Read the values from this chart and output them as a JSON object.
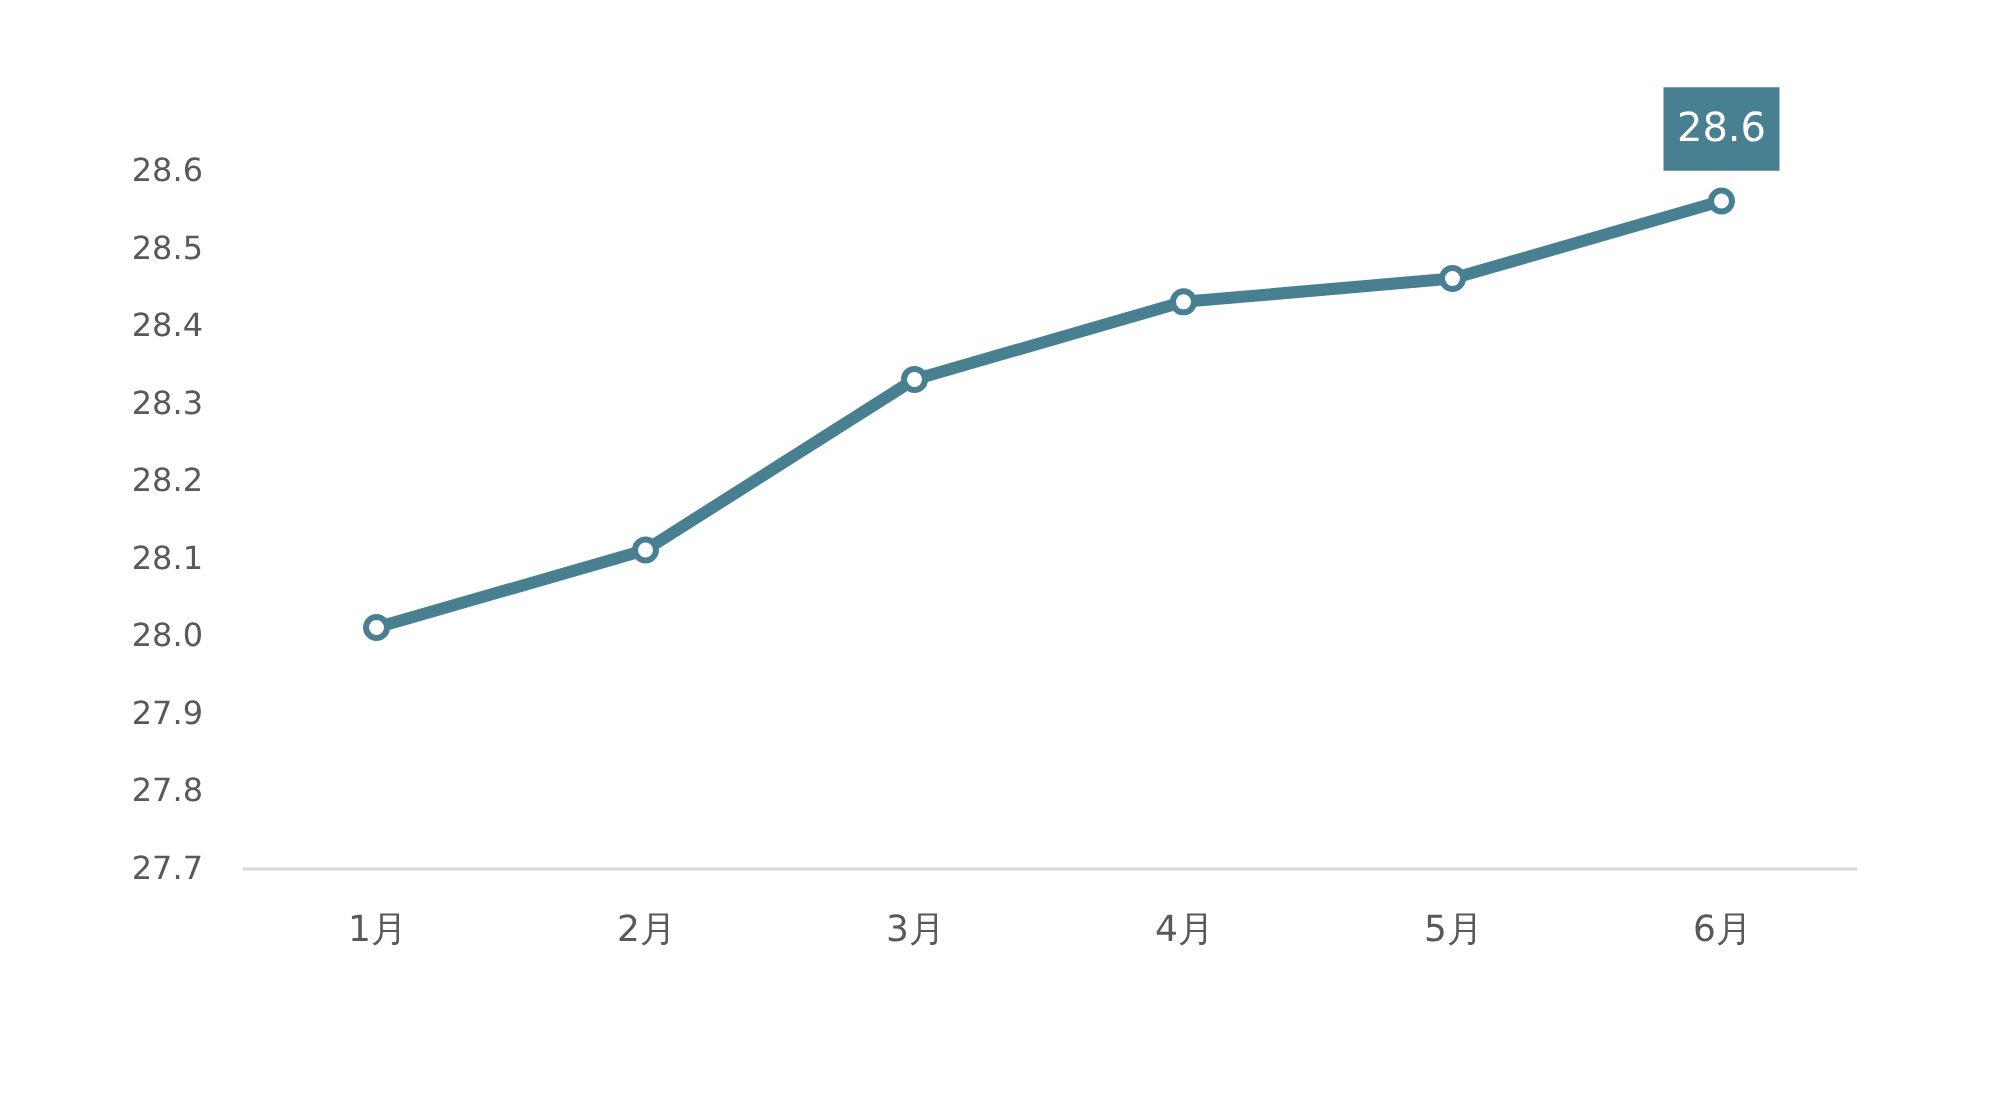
{
  "chart_data": {
    "type": "line",
    "categories": [
      "1月",
      "2月",
      "3月",
      "4月",
      "5月",
      "6月"
    ],
    "series": [
      {
        "color": "#488092",
        "values": [
          28.01,
          28.11,
          28.33,
          28.43,
          28.46,
          28.56
        ],
        "value_labels": [
          null,
          null,
          null,
          null,
          null,
          "28.6"
        ]
      }
    ],
    "ylim": [
      27.7,
      28.6
    ],
    "yticks": [
      27.7,
      27.8,
      27.9,
      {
        "value": 28.0,
        "label": "28.0"
      },
      28.1,
      28.2,
      28.3,
      28.4,
      28.5,
      28.6
    ],
    "grid": false,
    "marker": "circle",
    "line_style": "solid"
  }
}
